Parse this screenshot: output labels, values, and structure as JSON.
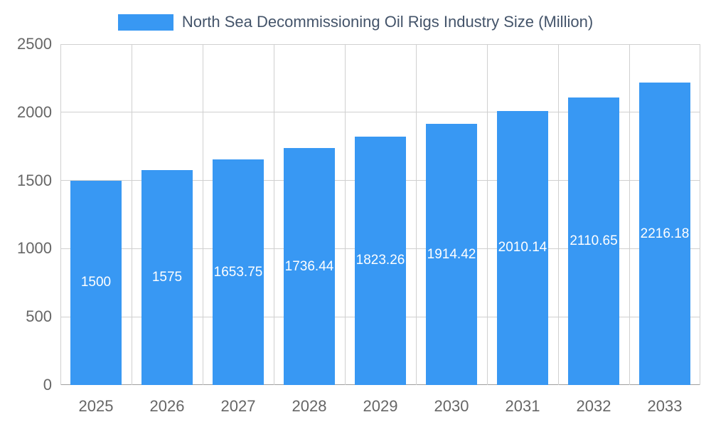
{
  "chart_data": {
    "type": "bar",
    "title": "North Sea Decommissioning Oil Rigs Industry Size (Million)",
    "categories": [
      "2025",
      "2026",
      "2027",
      "2028",
      "2029",
      "2030",
      "2031",
      "2032",
      "2033"
    ],
    "values": [
      1500,
      1575,
      1653.75,
      1736.44,
      1823.26,
      1914.42,
      2010.14,
      2110.65,
      2216.18
    ],
    "value_labels": [
      "1500",
      "1575",
      "1653.75",
      "1736.44",
      "1823.26",
      "1914.42",
      "2010.14",
      "2110.65",
      "2216.18"
    ],
    "ylim": [
      0,
      2500
    ],
    "yticks": [
      0,
      500,
      1000,
      1500,
      2000,
      2500
    ],
    "grid": true,
    "legend_position": "top",
    "colors": {
      "bar": "#3898F3",
      "title": "#44546A",
      "tick": "#666666",
      "grid": "#d0d0d0",
      "baseline": "#9e9e9e",
      "value_label": "#ffffff"
    }
  }
}
